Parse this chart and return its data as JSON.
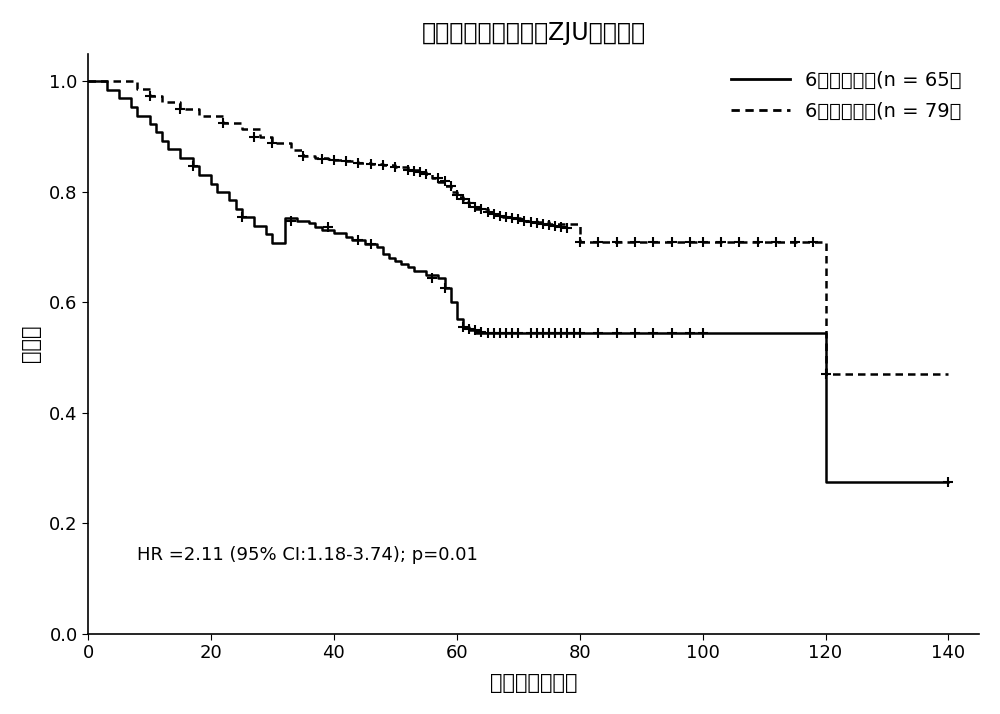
{
  "title": "非超突变型直肠癌（ZJU数据集）",
  "xlabel": "生存时间（月）",
  "ylabel": "生存率",
  "xlim": [
    0,
    145
  ],
  "ylim": [
    0.0,
    1.05
  ],
  "xticks": [
    0,
    20,
    40,
    60,
    80,
    100,
    120,
    140
  ],
  "yticks": [
    0.0,
    0.2,
    0.4,
    0.6,
    0.8,
    1.0
  ],
  "annotation": "HR =2.11 (95% CI:1.18-3.74); p=0.01",
  "legend_label_solid": "6基因突变组(n = 65）",
  "legend_label_dotted": "6基因野生组(n = 79）",
  "background_color": "#ffffff",
  "line_color": "#000000",
  "solid_times": [
    0,
    1,
    3,
    5,
    7,
    8,
    10,
    11,
    12,
    13,
    15,
    17,
    18,
    20,
    21,
    23,
    24,
    25,
    27,
    29,
    30,
    32,
    34,
    36,
    37,
    38,
    40,
    42,
    43,
    45,
    47,
    48,
    49,
    50,
    51,
    52,
    53,
    55,
    57,
    58,
    59,
    60,
    61,
    62,
    63,
    65,
    70,
    75,
    80,
    85,
    90,
    95,
    100,
    105,
    110,
    115,
    120,
    140
  ],
  "solid_surv": [
    1.0,
    1.0,
    0.985,
    0.969,
    0.954,
    0.938,
    0.923,
    0.908,
    0.892,
    0.877,
    0.862,
    0.846,
    0.831,
    0.815,
    0.8,
    0.785,
    0.769,
    0.754,
    0.738,
    0.723,
    0.708,
    0.752,
    0.748,
    0.744,
    0.737,
    0.731,
    0.725,
    0.718,
    0.712,
    0.706,
    0.7,
    0.688,
    0.681,
    0.675,
    0.669,
    0.663,
    0.656,
    0.65,
    0.644,
    0.625,
    0.6,
    0.57,
    0.555,
    0.55,
    0.545,
    0.545,
    0.545,
    0.545,
    0.545,
    0.545,
    0.545,
    0.545,
    0.545,
    0.545,
    0.545,
    0.545,
    0.275,
    0.275
  ],
  "solid_censor_t": [
    17,
    25,
    33,
    39,
    44,
    46,
    56,
    58,
    61,
    62,
    63,
    64,
    65,
    66,
    67,
    68,
    69,
    70,
    72,
    73,
    74,
    75,
    76,
    77,
    78,
    79,
    80,
    83,
    86,
    89,
    92,
    95,
    98,
    100,
    140
  ],
  "solid_censor_s": [
    0.846,
    0.754,
    0.748,
    0.737,
    0.712,
    0.706,
    0.644,
    0.625,
    0.555,
    0.552,
    0.549,
    0.547,
    0.545,
    0.545,
    0.545,
    0.545,
    0.545,
    0.545,
    0.545,
    0.545,
    0.545,
    0.545,
    0.545,
    0.545,
    0.545,
    0.545,
    0.545,
    0.545,
    0.545,
    0.545,
    0.545,
    0.545,
    0.545,
    0.545,
    0.275
  ],
  "dotted_times": [
    0,
    5,
    8,
    10,
    12,
    15,
    18,
    22,
    25,
    28,
    30,
    33,
    35,
    37,
    39,
    40,
    42,
    44,
    46,
    48,
    50,
    52,
    54,
    55,
    56,
    57,
    58,
    59,
    60,
    61,
    62,
    63,
    65,
    67,
    69,
    71,
    73,
    75,
    80,
    85,
    90,
    95,
    100,
    105,
    110,
    115,
    120,
    140
  ],
  "dotted_surv": [
    1.0,
    1.0,
    0.987,
    0.974,
    0.962,
    0.95,
    0.938,
    0.925,
    0.913,
    0.9,
    0.888,
    0.876,
    0.864,
    0.862,
    0.86,
    0.858,
    0.855,
    0.852,
    0.85,
    0.848,
    0.845,
    0.84,
    0.835,
    0.832,
    0.825,
    0.818,
    0.81,
    0.8,
    0.79,
    0.782,
    0.775,
    0.768,
    0.76,
    0.755,
    0.752,
    0.748,
    0.745,
    0.742,
    0.71,
    0.71,
    0.71,
    0.71,
    0.71,
    0.71,
    0.71,
    0.71,
    0.47,
    0.47
  ],
  "dotted_censor_t": [
    10,
    15,
    22,
    27,
    30,
    35,
    38,
    40,
    42,
    44,
    46,
    48,
    50,
    52,
    53,
    54,
    55,
    57,
    58,
    59,
    60,
    61,
    62,
    63,
    64,
    65,
    66,
    67,
    68,
    69,
    70,
    71,
    72,
    73,
    74,
    75,
    76,
    77,
    78,
    80,
    83,
    86,
    89,
    92,
    95,
    98,
    100,
    103,
    106,
    109,
    112,
    115,
    118,
    120
  ],
  "dotted_censor_s": [
    0.974,
    0.95,
    0.925,
    0.9,
    0.888,
    0.864,
    0.86,
    0.858,
    0.855,
    0.852,
    0.85,
    0.848,
    0.845,
    0.84,
    0.837,
    0.835,
    0.832,
    0.825,
    0.82,
    0.81,
    0.795,
    0.787,
    0.78,
    0.773,
    0.768,
    0.763,
    0.76,
    0.757,
    0.754,
    0.752,
    0.75,
    0.748,
    0.746,
    0.744,
    0.742,
    0.74,
    0.738,
    0.736,
    0.734,
    0.71,
    0.71,
    0.71,
    0.71,
    0.71,
    0.71,
    0.71,
    0.71,
    0.71,
    0.71,
    0.71,
    0.71,
    0.71,
    0.71,
    0.47
  ]
}
